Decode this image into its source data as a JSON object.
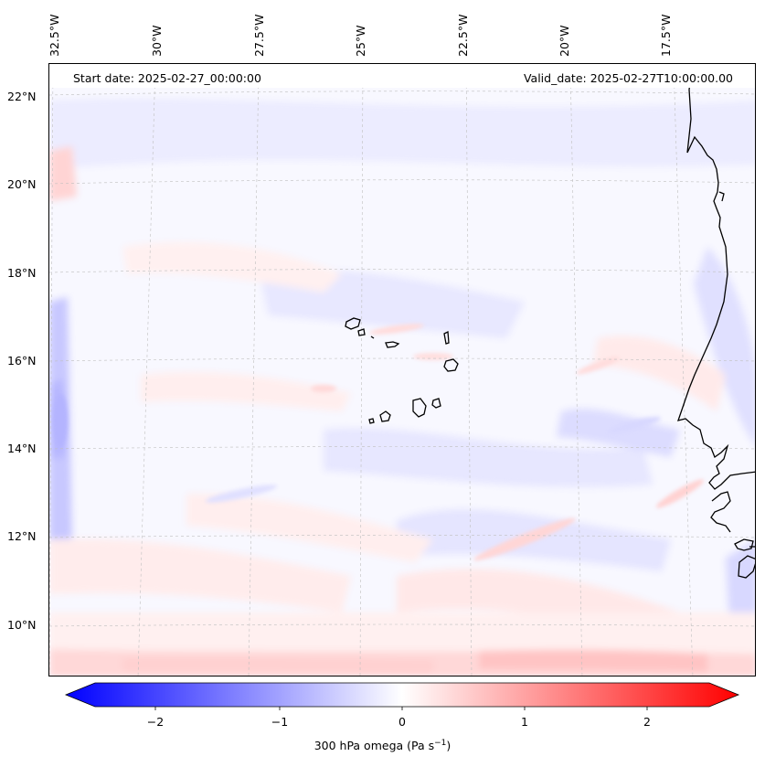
{
  "map": {
    "start_date": "Start date: 2025-02-27_00:00:00",
    "valid_date": "Valid_date: 2025-02-27T10:00:00.00",
    "lon_labels": [
      "32.5°W",
      "30°W",
      "27.5°W",
      "25°W",
      "22.5°W",
      "20°W",
      "17.5°W"
    ],
    "lat_labels": [
      "22°N",
      "20°N",
      "18°N",
      "16°N",
      "14°N",
      "12°N",
      "10°N"
    ],
    "colors": {
      "negative": "#0000ff",
      "positive": "#ff0000",
      "neutral": "#ffffff"
    }
  },
  "colorbar": {
    "ticks": [
      "−2",
      "−1",
      "0",
      "1",
      "2"
    ],
    "label_main": "300 hPa omega (Pa s",
    "label_sup": "−1",
    "label_end": ")"
  }
}
